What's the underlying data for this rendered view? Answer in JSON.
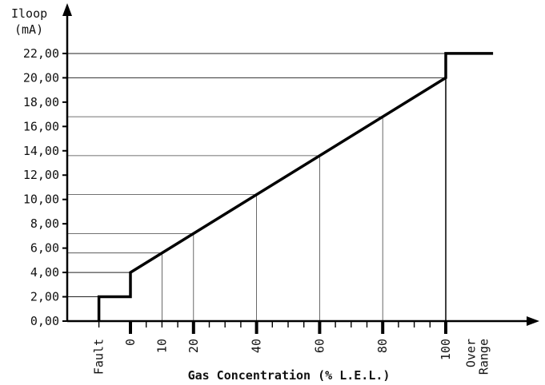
{
  "chart_data": {
    "type": "line",
    "title": "",
    "xlabel": "Gas Concentration (% L.E.L.)",
    "ylabel_line1": "Iloop",
    "ylabel_line2": "(mA)",
    "y_ticks": [
      "0,00",
      "2,00",
      "4,00",
      "6,00",
      "8,00",
      "10,00",
      "12,00",
      "14,00",
      "16,00",
      "18,00",
      "20,00",
      "22,00"
    ],
    "y_tick_values": [
      0,
      2,
      4,
      6,
      8,
      10,
      12,
      14,
      16,
      18,
      20,
      22
    ],
    "x_ticks": [
      {
        "label": "Fault",
        "x": -10
      },
      {
        "label": "0",
        "x": 0
      },
      {
        "label": "10",
        "x": 10
      },
      {
        "label": "20",
        "x": 20
      },
      {
        "label": "40",
        "x": 40
      },
      {
        "label": "60",
        "x": 60
      },
      {
        "label": "80",
        "x": 80
      },
      {
        "label": "100",
        "x": 100
      },
      {
        "label": "Over Range",
        "x": 110
      }
    ],
    "xlim": [
      -20,
      115
    ],
    "ylim": [
      0,
      22.9
    ],
    "series": [
      {
        "x": [
          -10,
          -10,
          0,
          0,
          100,
          100,
          115
        ],
        "y": [
          0,
          2,
          2,
          4,
          20,
          22,
          22
        ]
      }
    ],
    "reference_points": [
      {
        "x": 10,
        "y": 5.6
      },
      {
        "x": 20,
        "y": 7.2
      },
      {
        "x": 40,
        "y": 10.4
      },
      {
        "x": 60,
        "y": 13.6
      },
      {
        "x": 80,
        "y": 16.8
      },
      {
        "x": 100,
        "y": 20
      }
    ],
    "grid": false,
    "legend": "none"
  }
}
